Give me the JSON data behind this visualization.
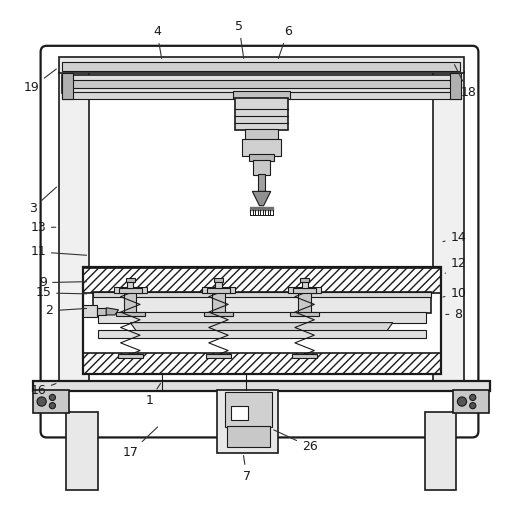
{
  "background_color": "#ffffff",
  "line_color": "#1a1a1a",
  "fig_width": 5.19,
  "fig_height": 5.14,
  "dpi": 100,
  "label_fontsize": 9,
  "label_targets": {
    "1": [
      0.285,
      0.22,
      0.31,
      0.258
    ],
    "2": [
      0.09,
      0.395,
      0.168,
      0.4
    ],
    "3": [
      0.058,
      0.595,
      0.108,
      0.64
    ],
    "4": [
      0.3,
      0.94,
      0.31,
      0.882
    ],
    "5": [
      0.46,
      0.95,
      0.47,
      0.882
    ],
    "6": [
      0.555,
      0.94,
      0.535,
      0.882
    ],
    "7": [
      0.475,
      0.072,
      0.468,
      0.118
    ],
    "8": [
      0.888,
      0.388,
      0.858,
      0.388
    ],
    "9": [
      0.078,
      0.45,
      0.168,
      0.452
    ],
    "10": [
      0.888,
      0.428,
      0.858,
      0.422
    ],
    "11": [
      0.068,
      0.51,
      0.168,
      0.503
    ],
    "12": [
      0.888,
      0.488,
      0.858,
      0.465
    ],
    "13": [
      0.068,
      0.558,
      0.108,
      0.558
    ],
    "14": [
      0.888,
      0.538,
      0.858,
      0.53
    ],
    "15": [
      0.078,
      0.43,
      0.168,
      0.428
    ],
    "16": [
      0.068,
      0.24,
      0.108,
      0.255
    ],
    "17": [
      0.248,
      0.118,
      0.305,
      0.172
    ],
    "18": [
      0.908,
      0.82,
      0.878,
      0.88
    ],
    "19": [
      0.055,
      0.83,
      0.108,
      0.87
    ],
    "26": [
      0.598,
      0.13,
      0.523,
      0.165
    ]
  }
}
